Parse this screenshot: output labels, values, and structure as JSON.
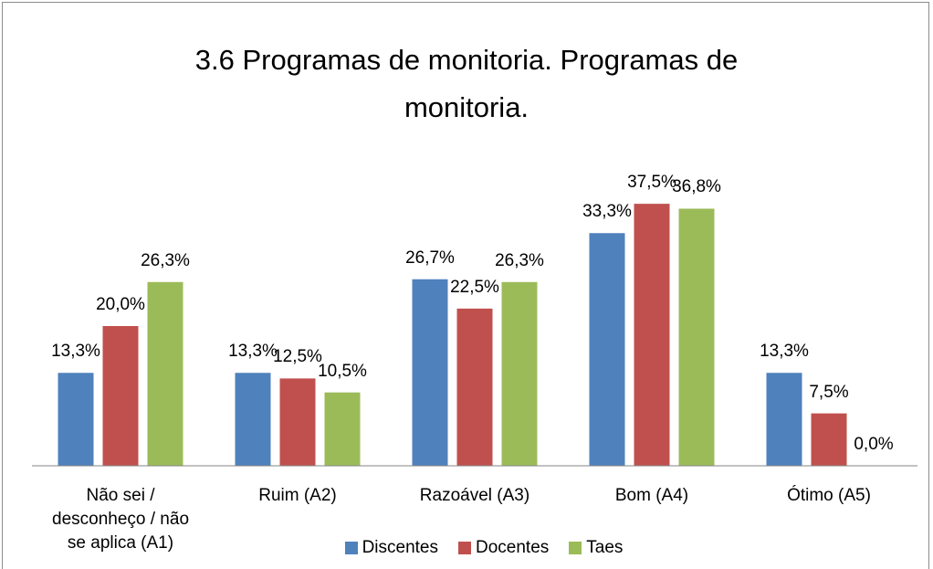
{
  "chart_data": {
    "type": "bar",
    "title": "3.6 Programas de monitoria. Programas de monitoria.",
    "categories": [
      "Não sei / desconheço / não se aplica (A1)",
      "Ruim (A2)",
      "Razoável (A3)",
      "Bom (A4)",
      "Ótimo (A5)"
    ],
    "series": [
      {
        "name": "Discentes",
        "color": "#4f81bd",
        "values": [
          13.3,
          13.3,
          26.7,
          33.3,
          13.3
        ],
        "value_labels": [
          "13,3%",
          "13,3%",
          "26,7%",
          "33,3%",
          "13,3%"
        ]
      },
      {
        "name": "Docentes",
        "color": "#c0504d",
        "values": [
          20.0,
          12.5,
          22.5,
          37.5,
          7.5
        ],
        "value_labels": [
          "20,0%",
          "12,5%",
          "22,5%",
          "37,5%",
          "7,5%"
        ]
      },
      {
        "name": "Taes",
        "color": "#9bbb59",
        "values": [
          26.3,
          10.5,
          26.3,
          36.8,
          0.0
        ],
        "value_labels": [
          "26,3%",
          "10,5%",
          "26,3%",
          "36,8%",
          "0,0%"
        ]
      }
    ],
    "ylim": [
      0,
      40
    ],
    "legend": "bottom"
  }
}
